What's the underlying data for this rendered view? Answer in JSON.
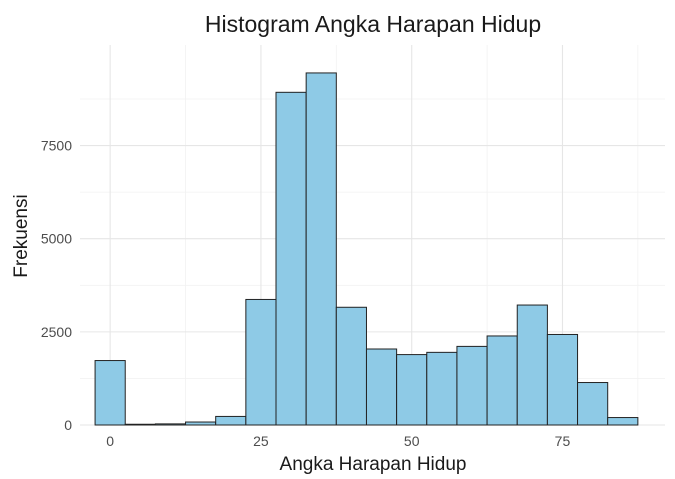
{
  "chart_data": {
    "type": "bar",
    "subtype": "histogram",
    "title": "Histogram Angka Harapan Hidup",
    "xlabel": "Angka Harapan Hidup",
    "ylabel": "Frekuensi",
    "xlim": [
      -5,
      92
    ],
    "ylim": [
      0,
      10200
    ],
    "x_ticks": [
      0,
      25,
      50,
      75
    ],
    "x_tick_labels": [
      "0",
      "25",
      "50",
      "75"
    ],
    "y_ticks": [
      0,
      2500,
      5000,
      7500
    ],
    "y_tick_labels": [
      "0",
      "2500",
      "5000",
      "7500"
    ],
    "bin_width": 5,
    "bins": [
      {
        "x0": -2.5,
        "x1": 2.5,
        "count": 1730
      },
      {
        "x0": 2.5,
        "x1": 7.5,
        "count": 20
      },
      {
        "x0": 7.5,
        "x1": 12.5,
        "count": 30
      },
      {
        "x0": 12.5,
        "x1": 17.5,
        "count": 80
      },
      {
        "x0": 17.5,
        "x1": 22.5,
        "count": 230
      },
      {
        "x0": 22.5,
        "x1": 27.5,
        "count": 3370
      },
      {
        "x0": 27.5,
        "x1": 32.5,
        "count": 8930
      },
      {
        "x0": 32.5,
        "x1": 37.5,
        "count": 9450
      },
      {
        "x0": 37.5,
        "x1": 42.5,
        "count": 3160
      },
      {
        "x0": 42.5,
        "x1": 47.5,
        "count": 2040
      },
      {
        "x0": 47.5,
        "x1": 52.5,
        "count": 1890
      },
      {
        "x0": 52.5,
        "x1": 57.5,
        "count": 1950
      },
      {
        "x0": 57.5,
        "x1": 62.5,
        "count": 2110
      },
      {
        "x0": 62.5,
        "x1": 67.5,
        "count": 2390
      },
      {
        "x0": 67.5,
        "x1": 72.5,
        "count": 3220
      },
      {
        "x0": 72.5,
        "x1": 77.5,
        "count": 2430
      },
      {
        "x0": 77.5,
        "x1": 82.5,
        "count": 1140
      },
      {
        "x0": 82.5,
        "x1": 87.5,
        "count": 200
      }
    ],
    "grid": true,
    "legend": "none",
    "colors": {
      "bar_fill": "#8ecae6",
      "bar_outline": "#222222",
      "grid": "#e6e6e6",
      "background": "#ffffff"
    }
  }
}
